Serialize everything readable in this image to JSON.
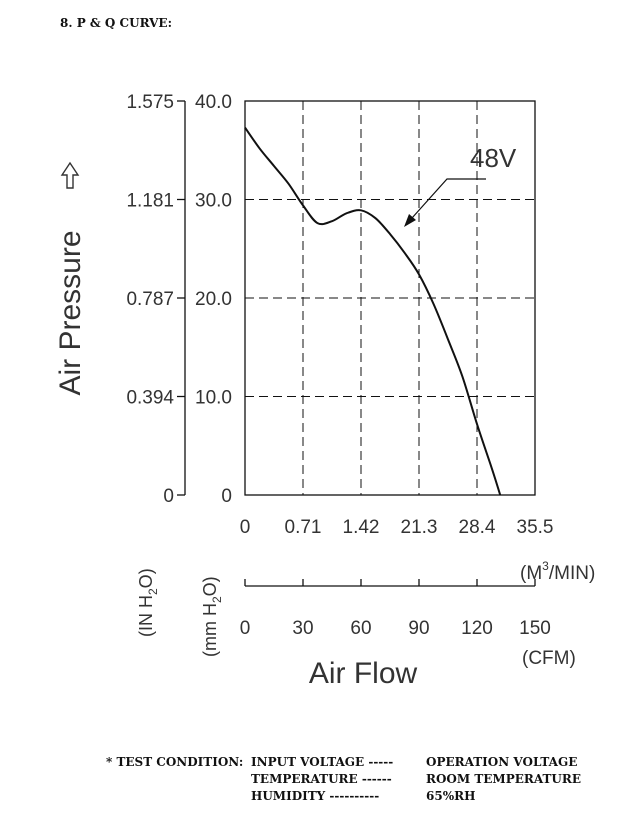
{
  "heading": "8. P & Q CURVE:",
  "y_axis_label": "Air Pressure",
  "y_unit_in": "(IN H2O)",
  "y_unit_mm": "(mm H2O)",
  "x_axis_label": "Air Flow",
  "x_unit_m3": "(M3/MIN)",
  "x_unit_cfm": "(CFM)",
  "test_condition": {
    "label": "* TEST CONDITION:",
    "lines": [
      {
        "name": "INPUT VOLTAGE",
        "dashes": "-----",
        "value": "OPERATION VOLTAGE"
      },
      {
        "name": "TEMPERATURE",
        "dashes": "------",
        "value": "ROOM TEMPERATURE"
      },
      {
        "name": "HUMIDITY",
        "dashes": "----------",
        "value": "65%RH"
      }
    ]
  },
  "chart_data": {
    "type": "line",
    "xlabel": "Air Flow",
    "ylabel": "Air Pressure",
    "xlim": [
      0,
      150
    ],
    "ylim": [
      0,
      40
    ],
    "grid": true,
    "y_ticks_mm": [
      "0",
      "10.0",
      "20.0",
      "30.0",
      "40.0"
    ],
    "y_ticks_in": [
      "0",
      "0.394",
      "0.787",
      "1.181",
      "1.575"
    ],
    "x_ticks_m3": [
      "0",
      "0.71",
      "1.42",
      "21.3",
      "28.4",
      "35.5"
    ],
    "x_ticks_cfm": [
      "0",
      "30",
      "60",
      "90",
      "120",
      "150"
    ],
    "series": [
      {
        "name": "48V",
        "x": [
          0,
          7.5,
          15,
          22.5,
          30,
          37.5,
          45,
          52.5,
          60,
          67.5,
          75,
          82.5,
          90,
          97.5,
          105,
          112.5,
          120,
          127.5,
          132
        ],
        "y": [
          37.3,
          35.2,
          33.4,
          31.6,
          29.4,
          27.6,
          27.8,
          28.6,
          28.9,
          28.1,
          26.5,
          24.6,
          22.4,
          19.4,
          15.8,
          12.0,
          7.2,
          2.8,
          0
        ]
      }
    ]
  }
}
